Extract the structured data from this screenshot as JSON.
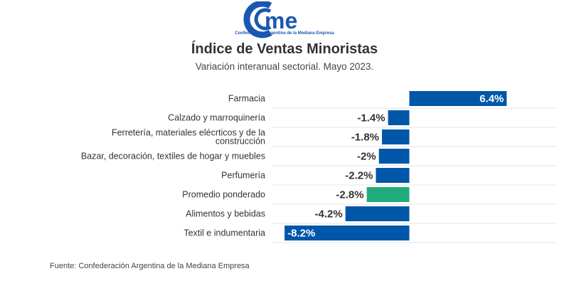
{
  "logo": {
    "text": "came",
    "subtitle": "Confederación Argentina de la Mediana Empresa"
  },
  "source": "Fuente: Confederación Argentina de la Mediana Empresa",
  "colors": {
    "bar": "#0057a8",
    "highlight": "#21ab7a",
    "grid": "#e6e6e6"
  },
  "chart_data": {
    "type": "bar",
    "orientation": "horizontal",
    "title": "Índice de Ventas Minoristas",
    "subtitle": "Variación interanual sectorial. Mayo 2023.",
    "categories": [
      "Farmacia",
      "Calzado y marroquinería",
      "Ferretería, materiales elécrticos y de la construcción",
      "Bazar, decoración, textiles de hogar y muebles",
      "Perfumería",
      "Promedio ponderado",
      "Alimentos y bebidas",
      "Textil e indumentaria"
    ],
    "category_lines": [
      [
        "Farmacia"
      ],
      [
        "Calzado y marroquinería"
      ],
      [
        "Ferretería, materiales elécrticos y de la",
        "construcción"
      ],
      [
        "Bazar, decoración, textiles de hogar y muebles"
      ],
      [
        "Perfumería"
      ],
      [
        "Promedio ponderado"
      ],
      [
        "Alimentos y bebidas"
      ],
      [
        "Textil e indumentaria"
      ]
    ],
    "values": [
      6.4,
      -1.4,
      -1.8,
      -2,
      -2.2,
      -2.8,
      -4.2,
      -8.2
    ],
    "labels": [
      "6.4%",
      "-1.4%",
      "-1.8%",
      "-2%",
      "-2.2%",
      "-2.8%",
      "-4.2%",
      "-8.2%"
    ],
    "highlight_index": 5,
    "xlim": [
      -9,
      9.7
    ],
    "grid": true,
    "xlabel": "",
    "ylabel": ""
  }
}
